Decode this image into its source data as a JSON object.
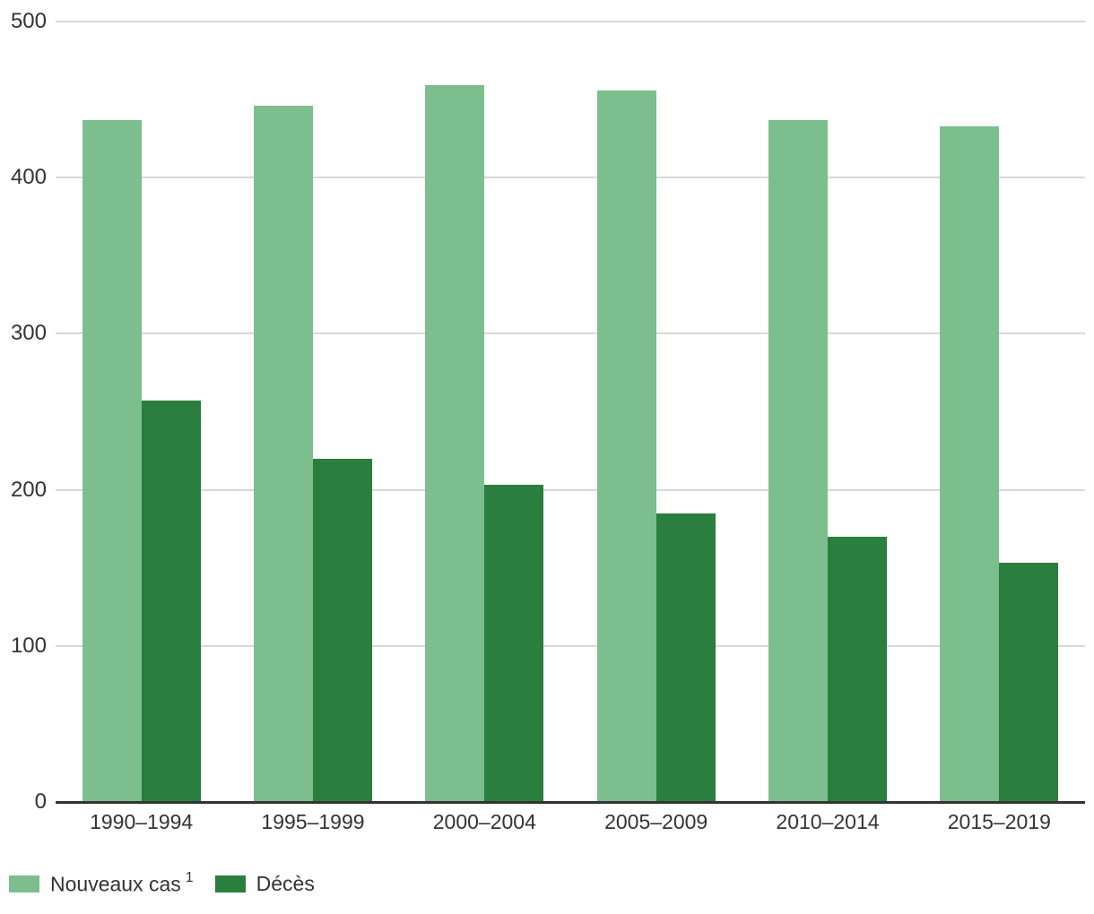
{
  "chart_data": {
    "type": "bar",
    "title": "",
    "xlabel": "",
    "ylabel": "",
    "categories": [
      "1990–1994",
      "1995–1999",
      "2000–2004",
      "2005–2009",
      "2010–2014",
      "2015–2019"
    ],
    "series": [
      {
        "name": "Nouveaux cas",
        "name_superscript": "1",
        "color": "#7CBE8D",
        "values": [
          437,
          446,
          459,
          456,
          437,
          433
        ]
      },
      {
        "name": "Décès",
        "name_superscript": "",
        "color": "#2A7E3E",
        "values": [
          257,
          220,
          203,
          185,
          170,
          153
        ]
      }
    ],
    "ylim": [
      0,
      500
    ],
    "yticks": [
      0,
      100,
      200,
      300,
      400,
      500
    ],
    "grid": "horizontal",
    "legend_position": "bottom-left"
  },
  "style": {
    "gridline_color": "#d8d8d8",
    "axis_line_color": "#333333",
    "text_color": "#333333",
    "background": "#ffffff"
  }
}
